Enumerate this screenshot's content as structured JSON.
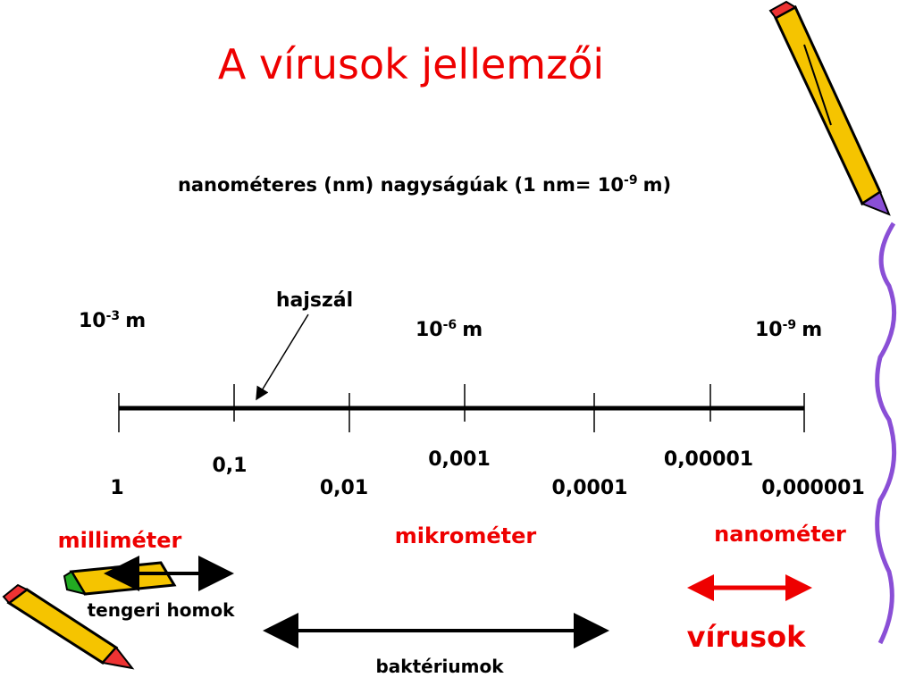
{
  "header": {
    "title": "A vírusok jellemzői",
    "subtitle": {
      "text": "nanométeres (nm) nagyságúak (1 nm= 10",
      "sup": "-9",
      "unit": "m)"
    }
  },
  "scale": {
    "powers": [
      {
        "base": "10",
        "sup": "-3",
        "unit": "m"
      },
      {
        "base": "10",
        "sup": "-6",
        "unit": "m"
      },
      {
        "base": "10",
        "sup": "-9",
        "unit": "m"
      }
    ],
    "ticks": [
      "1",
      "0,1",
      "0,01",
      "0,001",
      "0,0001",
      "0,00001",
      "0,000001"
    ],
    "units": [
      "milliméter",
      "mikrométer",
      "nanométer"
    ],
    "pointer": "hajszál"
  },
  "ranges": {
    "sand": "tengeri homok",
    "bacteria": "baktériumok",
    "viruses": "vírusok"
  }
}
